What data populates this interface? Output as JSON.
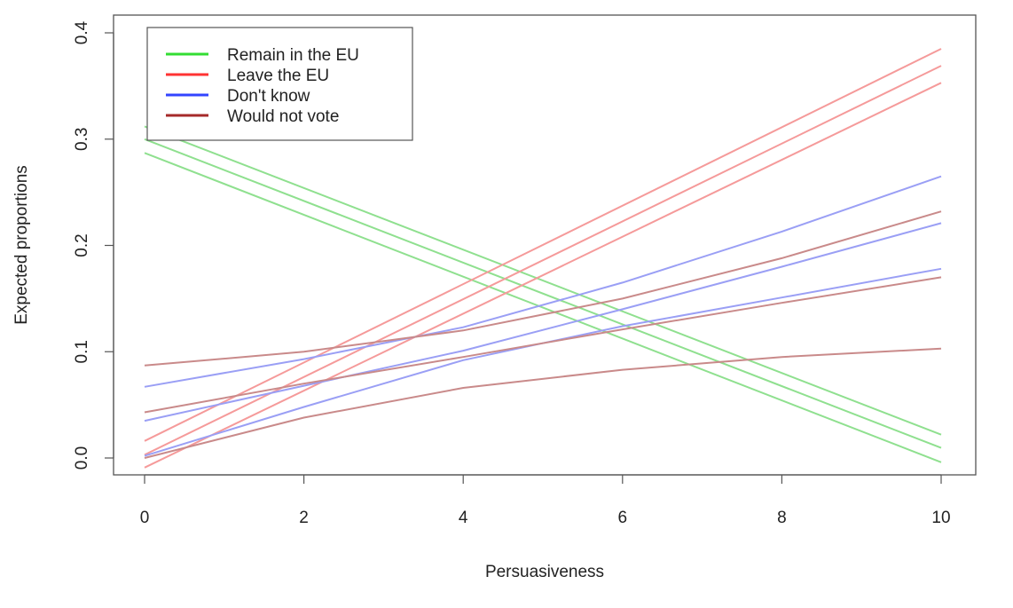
{
  "chart_data": {
    "type": "line",
    "title": "",
    "xlabel": "Persuasiveness",
    "ylabel": "Expected proportions",
    "xlim": [
      0,
      10
    ],
    "ylim": [
      0,
      0.4
    ],
    "x_ticks": [
      "0",
      "2",
      "4",
      "6",
      "8",
      "10"
    ],
    "y_ticks": [
      "0.0",
      "0.1",
      "0.2",
      "0.3",
      "0.4"
    ],
    "grid": false,
    "legend_position": "top-left",
    "legend": [
      {
        "label": "Remain in the EU",
        "color": "#33dd33"
      },
      {
        "label": "Leave the EU",
        "color": "#ff3333"
      },
      {
        "label": "Don't know",
        "color": "#3344ff"
      },
      {
        "label": "Would not vote",
        "color": "#a52a2a"
      }
    ],
    "series": [
      {
        "group": "Remain in the EU",
        "color": "#8fe08f",
        "x": [
          0,
          10
        ],
        "y": [
          0.3,
          0.0095
        ]
      },
      {
        "group": "Remain in the EU",
        "color": "#8fe08f",
        "x": [
          0,
          10
        ],
        "y": [
          0.312,
          0.022
        ]
      },
      {
        "group": "Remain in the EU",
        "color": "#8fe08f",
        "x": [
          0,
          10
        ],
        "y": [
          0.287,
          -0.004
        ]
      },
      {
        "group": "Leave the EU",
        "color": "#f59a9a",
        "x": [
          0,
          10
        ],
        "y": [
          0.003,
          0.369
        ]
      },
      {
        "group": "Leave the EU",
        "color": "#f59a9a",
        "x": [
          0,
          10
        ],
        "y": [
          0.016,
          0.385
        ]
      },
      {
        "group": "Leave the EU",
        "color": "#f59a9a",
        "x": [
          0,
          10
        ],
        "y": [
          -0.009,
          0.353
        ]
      },
      {
        "group": "Don't know",
        "color": "#9a9ff5",
        "x": [
          0,
          2,
          4,
          6,
          8,
          10
        ],
        "y": [
          0.035,
          0.068,
          0.101,
          0.14,
          0.18,
          0.221
        ]
      },
      {
        "group": "Don't know",
        "color": "#9a9ff5",
        "x": [
          0,
          2,
          4,
          6,
          8,
          10
        ],
        "y": [
          0.067,
          0.093,
          0.123,
          0.165,
          0.213,
          0.265
        ]
      },
      {
        "group": "Don't know",
        "color": "#9a9ff5",
        "x": [
          0,
          2,
          4,
          6,
          8,
          10
        ],
        "y": [
          0.002,
          0.048,
          0.092,
          0.124,
          0.151,
          0.178
        ]
      },
      {
        "group": "Would not vote",
        "color": "#c98a8a",
        "x": [
          0,
          2,
          4,
          6,
          8,
          10
        ],
        "y": [
          0.043,
          0.07,
          0.095,
          0.121,
          0.146,
          0.17
        ]
      },
      {
        "group": "Would not vote",
        "color": "#c98a8a",
        "x": [
          0,
          2,
          4,
          6,
          8,
          10
        ],
        "y": [
          0.087,
          0.1,
          0.12,
          0.15,
          0.188,
          0.232
        ]
      },
      {
        "group": "Would not vote",
        "color": "#c98a8a",
        "x": [
          0,
          2,
          4,
          6,
          8,
          10
        ],
        "y": [
          0.0,
          0.038,
          0.066,
          0.083,
          0.095,
          0.103
        ]
      }
    ]
  }
}
